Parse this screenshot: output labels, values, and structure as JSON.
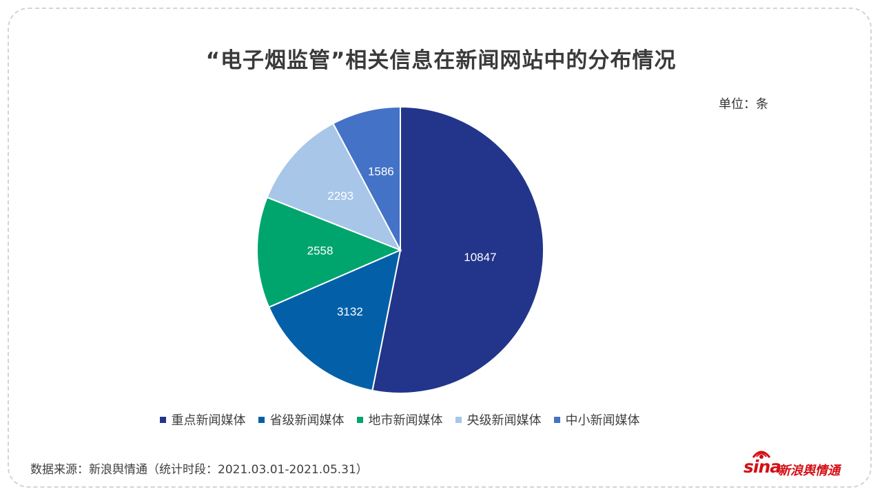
{
  "title": "“电子烟监管”相关信息在新闻网站中的分布情况",
  "unit": "单位：条",
  "source": "数据来源：新浪舆情通（统计时段：2021.03.01-2021.05.31）",
  "logo": {
    "sina": "sina",
    "brand": "新浪舆情通"
  },
  "chart_data": {
    "type": "pie",
    "categories": [
      "重点新闻媒体",
      "省级新闻媒体",
      "地市新闻媒体",
      "央级新闻媒体",
      "中小新闻媒体"
    ],
    "values": [
      10847,
      3132,
      2558,
      2293,
      1586
    ],
    "colors": [
      "#22358b",
      "#0360a8",
      "#00a56d",
      "#a7c6e8",
      "#4472c6"
    ],
    "data_labels": [
      "10847",
      "3132",
      "2558",
      "2293",
      "1586"
    ],
    "legend_position": "bottom",
    "start_angle": "top, clockwise"
  }
}
